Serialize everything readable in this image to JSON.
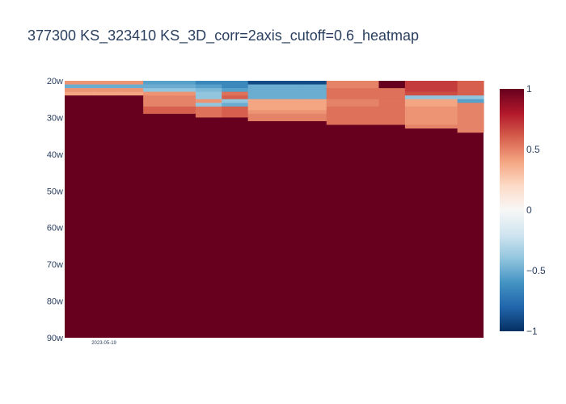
{
  "chart_data": {
    "type": "heatmap",
    "title": "377300 KS_323410 KS_3D_corr=2axis_cutoff=0.6_heatmap",
    "xlabel": "",
    "ylabel": "",
    "x_tick_labels": [
      "2023-05-19"
    ],
    "y_tick_labels": [
      "20w",
      "30w",
      "40w",
      "50w",
      "60w",
      "70w",
      "80w",
      "90w"
    ],
    "y_range": [
      20,
      90
    ],
    "zmin": -1,
    "zmax": 1,
    "colorscale": "RdBu",
    "colorbar_ticks": [
      1,
      0.5,
      0,
      -0.5,
      -1
    ],
    "colorbar_tick_labels": [
      "1",
      "0.5",
      "0",
      "−0.5",
      "−1"
    ],
    "columns": 16,
    "z": [
      [
        0.45,
        0.45,
        0.45,
        -0.55,
        -0.55,
        -0.65,
        -0.65,
        -0.9,
        -0.9,
        -0.9,
        0.5,
        0.5,
        1,
        0.7,
        0.7,
        0.6
      ],
      [
        -0.5,
        -0.5,
        -0.5,
        -0.5,
        -0.5,
        -0.55,
        -0.65,
        -0.5,
        -0.5,
        -0.5,
        0.5,
        0.5,
        1,
        0.7,
        0.7,
        0.6
      ],
      [
        0.45,
        0.45,
        0.45,
        -0.4,
        -0.4,
        -0.45,
        -0.55,
        -0.5,
        -0.5,
        -0.5,
        0.55,
        0.55,
        0.55,
        0.7,
        0.7,
        0.6
      ],
      [
        0.4,
        0.4,
        0.4,
        0.45,
        0.45,
        -0.4,
        0.55,
        -0.5,
        -0.5,
        -0.5,
        0.55,
        0.55,
        0.55,
        0.65,
        0.65,
        0.6
      ],
      [
        1,
        1,
        1,
        0.5,
        0.5,
        -0.4,
        0.6,
        -0.5,
        -0.5,
        -0.5,
        0.55,
        0.55,
        0.55,
        -0.4,
        -0.4,
        -0.4
      ],
      [
        1,
        1,
        1,
        0.5,
        0.5,
        0.45,
        -0.4,
        0.4,
        0.4,
        0.4,
        0.5,
        0.5,
        0.55,
        0.4,
        0.4,
        -0.55
      ],
      [
        1,
        1,
        1,
        0.5,
        0.5,
        -0.4,
        -0.5,
        0.4,
        0.4,
        0.4,
        0.5,
        0.5,
        0.55,
        0.4,
        0.4,
        0.5
      ],
      [
        1,
        1,
        1,
        0.6,
        0.6,
        0.55,
        0.6,
        0.4,
        0.4,
        0.4,
        0.55,
        0.55,
        0.55,
        0.45,
        0.45,
        0.5
      ],
      [
        1,
        1,
        1,
        0.6,
        0.6,
        0.55,
        0.6,
        0.45,
        0.45,
        0.45,
        0.55,
        0.55,
        0.55,
        0.45,
        0.45,
        0.5
      ],
      [
        1,
        1,
        1,
        1,
        1,
        0.55,
        0.6,
        0.5,
        0.5,
        0.5,
        0.55,
        0.55,
        0.55,
        0.45,
        0.45,
        0.5
      ],
      [
        1,
        1,
        1,
        1,
        1,
        1,
        1,
        0.5,
        0.5,
        0.5,
        0.55,
        0.55,
        0.55,
        0.45,
        0.45,
        0.5
      ],
      [
        1,
        1,
        1,
        1,
        1,
        1,
        1,
        1,
        1,
        1,
        0.55,
        0.55,
        0.55,
        0.45,
        0.45,
        0.5
      ],
      [
        1,
        1,
        1,
        1,
        1,
        1,
        1,
        1,
        1,
        1,
        1,
        1,
        1,
        0.5,
        0.5,
        0.5
      ],
      [
        1,
        1,
        1,
        1,
        1,
        1,
        1,
        1,
        1,
        1,
        1,
        1,
        1,
        1,
        1,
        0.5
      ]
    ],
    "below_value": 1
  }
}
